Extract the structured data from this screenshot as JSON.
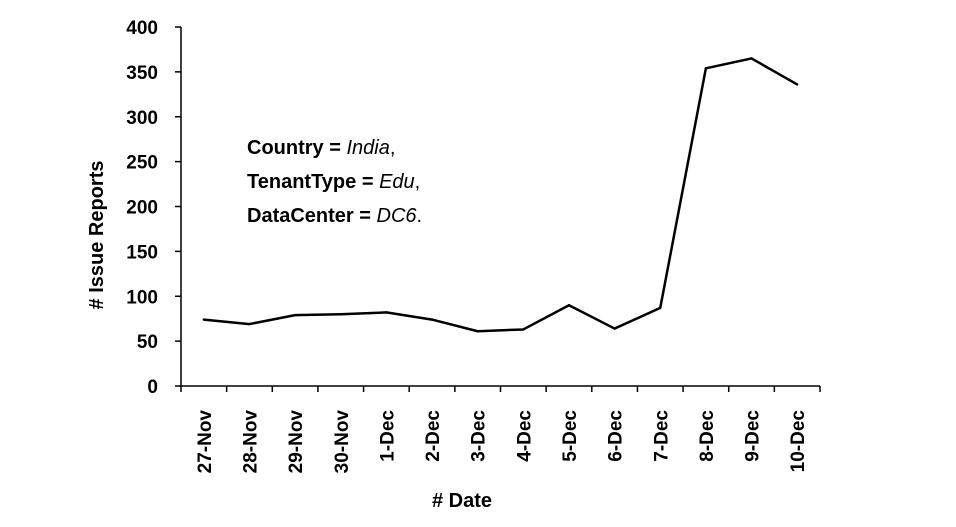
{
  "chart_data": {
    "type": "line",
    "title": "",
    "xlabel": "# Date",
    "ylabel": "# Issue Reports",
    "categories": [
      "27-Nov",
      "28-Nov",
      "29-Nov",
      "30-Nov",
      "1-Dec",
      "2-Dec",
      "3-Dec",
      "4-Dec",
      "5-Dec",
      "6-Dec",
      "7-Dec",
      "8-Dec",
      "9-Dec",
      "10-Dec"
    ],
    "series": [
      {
        "values": [
          74,
          69,
          79,
          80,
          82,
          74,
          61,
          63,
          90,
          64,
          87,
          354,
          365,
          336
        ]
      }
    ],
    "ylim": [
      0,
      400
    ],
    "yticks": [
      "0",
      "50",
      "100",
      "150",
      "200",
      "250",
      "300",
      "350",
      "400"
    ],
    "grid": false,
    "line_color": "#000000",
    "annotation": [
      {
        "key": "Country",
        "op": " = ",
        "value": "India",
        "end": ","
      },
      {
        "key": "TenantType",
        "op": " = ",
        "value": "Edu",
        "end": ","
      },
      {
        "key": "DataCenter",
        "op": " = ",
        "value": "DC6",
        "end": "."
      }
    ]
  }
}
